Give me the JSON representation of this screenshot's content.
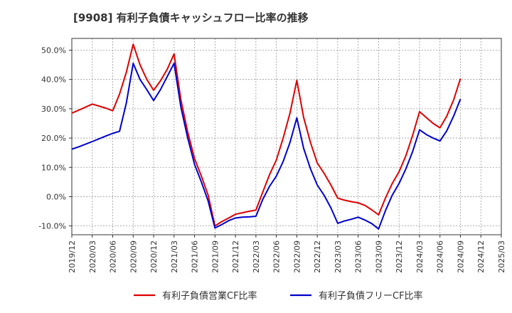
{
  "chart_data": {
    "type": "line",
    "title": "[9908]  有利子負債キャッシュフロー比率の推移",
    "x_tick_labels": [
      "2019/12",
      "2020/03",
      "2020/06",
      "2020/09",
      "2020/12",
      "2021/03",
      "2021/06",
      "2021/09",
      "2021/12",
      "2022/03",
      "2022/06",
      "2022/09",
      "2022/12",
      "2023/03",
      "2023/06",
      "2023/09",
      "2023/12",
      "2024/03",
      "2024/06",
      "2024/09",
      "2024/12",
      "2025/03"
    ],
    "y_tick_labels": [
      "50.0%",
      "40.0%",
      "30.0%",
      "20.0%",
      "10.0%",
      "0.0%",
      "-10.0%"
    ],
    "y_tick_values": [
      50,
      40,
      30,
      20,
      10,
      0,
      -10
    ],
    "ylim": [
      -13,
      54
    ],
    "grid": true,
    "legend_position": "bottom",
    "x": [
      "2019/12",
      "2020/01",
      "2020/03",
      "2020/05",
      "2020/06",
      "2020/07",
      "2020/08",
      "2020/09",
      "2020/10",
      "2020/11",
      "2020/12",
      "2021/01",
      "2021/02",
      "2021/03",
      "2021/04",
      "2021/05",
      "2021/06",
      "2021/07",
      "2021/08",
      "2021/09",
      "2021/10",
      "2021/11",
      "2021/12",
      "2022/01",
      "2022/02",
      "2022/03",
      "2022/04",
      "2022/05",
      "2022/06",
      "2022/07",
      "2022/08",
      "2022/09",
      "2022/10",
      "2022/11",
      "2022/12",
      "2023/01",
      "2023/02",
      "2023/03",
      "2023/04",
      "2023/05",
      "2023/06",
      "2023/07",
      "2023/08",
      "2023/09",
      "2023/10",
      "2023/11",
      "2023/12",
      "2024/01",
      "2024/02",
      "2024/03",
      "2024/04",
      "2024/05",
      "2024/06",
      "2024/07",
      "2024/08",
      "2024/09"
    ],
    "series": [
      {
        "name": "有利子負債営業CF比率",
        "color": "#dd0000",
        "values": [
          28.5,
          29.5,
          31.6,
          30.2,
          29.3,
          35.0,
          42.5,
          52.0,
          45.0,
          40.0,
          36.3,
          39.5,
          43.5,
          48.7,
          33.0,
          22.0,
          13.0,
          7.0,
          0.5,
          -10.0,
          -8.5,
          -7.3,
          -6.0,
          -5.5,
          -5.0,
          -4.6,
          1.5,
          7.5,
          12.5,
          20.0,
          28.5,
          39.7,
          27.0,
          18.5,
          11.5,
          8.0,
          4.0,
          -0.5,
          -1.2,
          -1.7,
          -2.1,
          -3.0,
          -4.5,
          -6.2,
          -0.5,
          4.5,
          8.5,
          14.0,
          21.0,
          29.0,
          27.0,
          25.0,
          23.5,
          27.5,
          33.0,
          40.3
        ]
      },
      {
        "name": "有利子負債フリーCF比率",
        "color": "#0000cc",
        "values": [
          16.2,
          17.0,
          18.8,
          20.7,
          21.6,
          22.3,
          32.0,
          45.5,
          40.0,
          36.5,
          32.8,
          36.5,
          41.0,
          45.5,
          30.5,
          20.0,
          11.0,
          5.0,
          -1.5,
          -10.7,
          -9.5,
          -8.2,
          -7.3,
          -7.0,
          -6.9,
          -6.7,
          -1.0,
          3.5,
          7.0,
          12.0,
          18.5,
          26.9,
          16.5,
          9.5,
          4.0,
          0.5,
          -3.8,
          -9.1,
          -8.3,
          -7.7,
          -7.0,
          -8.0,
          -9.2,
          -11.0,
          -4.8,
          0.5,
          4.5,
          9.5,
          15.5,
          22.8,
          21.2,
          20.0,
          19.0,
          22.5,
          27.5,
          33.3
        ]
      }
    ]
  }
}
